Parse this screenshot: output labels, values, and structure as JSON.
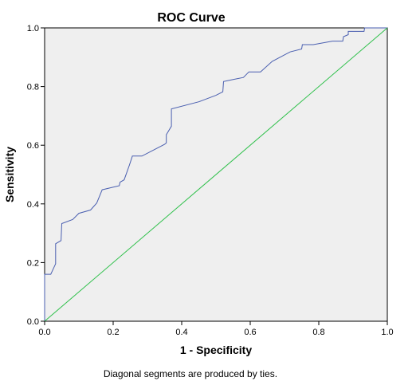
{
  "chart_data": {
    "type": "line",
    "title": "ROC Curve",
    "xlabel": "1 - Specificity",
    "ylabel": "Sensitivity",
    "footnote": "Diagonal segments are produced by ties.",
    "xlim": [
      0,
      1
    ],
    "ylim": [
      0,
      1
    ],
    "x_ticks": [
      "0.0",
      "0.2",
      "0.4",
      "0.6",
      "0.8",
      "1.0"
    ],
    "y_ticks": [
      "0.0",
      "0.2",
      "0.4",
      "0.6",
      "0.8",
      "1.0"
    ],
    "grid": false,
    "background_color": "#efefef",
    "series": [
      {
        "color": "#4a5fb0",
        "points": [
          [
            0.0,
            0.0
          ],
          [
            0.0,
            0.16
          ],
          [
            0.018,
            0.16
          ],
          [
            0.032,
            0.196
          ],
          [
            0.032,
            0.264
          ],
          [
            0.048,
            0.275
          ],
          [
            0.05,
            0.333
          ],
          [
            0.082,
            0.347
          ],
          [
            0.1,
            0.368
          ],
          [
            0.134,
            0.379
          ],
          [
            0.152,
            0.403
          ],
          [
            0.168,
            0.448
          ],
          [
            0.218,
            0.462
          ],
          [
            0.22,
            0.474
          ],
          [
            0.232,
            0.482
          ],
          [
            0.248,
            0.534
          ],
          [
            0.256,
            0.563
          ],
          [
            0.284,
            0.563
          ],
          [
            0.35,
            0.603
          ],
          [
            0.355,
            0.608
          ],
          [
            0.355,
            0.636
          ],
          [
            0.37,
            0.665
          ],
          [
            0.37,
            0.724
          ],
          [
            0.45,
            0.748
          ],
          [
            0.5,
            0.77
          ],
          [
            0.52,
            0.782
          ],
          [
            0.522,
            0.817
          ],
          [
            0.55,
            0.824
          ],
          [
            0.58,
            0.831
          ],
          [
            0.596,
            0.85
          ],
          [
            0.63,
            0.85
          ],
          [
            0.664,
            0.886
          ],
          [
            0.716,
            0.918
          ],
          [
            0.75,
            0.928
          ],
          [
            0.752,
            0.943
          ],
          [
            0.784,
            0.943
          ],
          [
            0.84,
            0.955
          ],
          [
            0.87,
            0.955
          ],
          [
            0.872,
            0.97
          ],
          [
            0.886,
            0.977
          ],
          [
            0.886,
            0.988
          ],
          [
            0.932,
            0.988
          ],
          [
            0.934,
            1.0
          ],
          [
            1.0,
            1.0
          ]
        ]
      },
      {
        "color": "#2ec04a",
        "points": [
          [
            0.0,
            0.0
          ],
          [
            1.0,
            1.0
          ]
        ]
      }
    ]
  }
}
